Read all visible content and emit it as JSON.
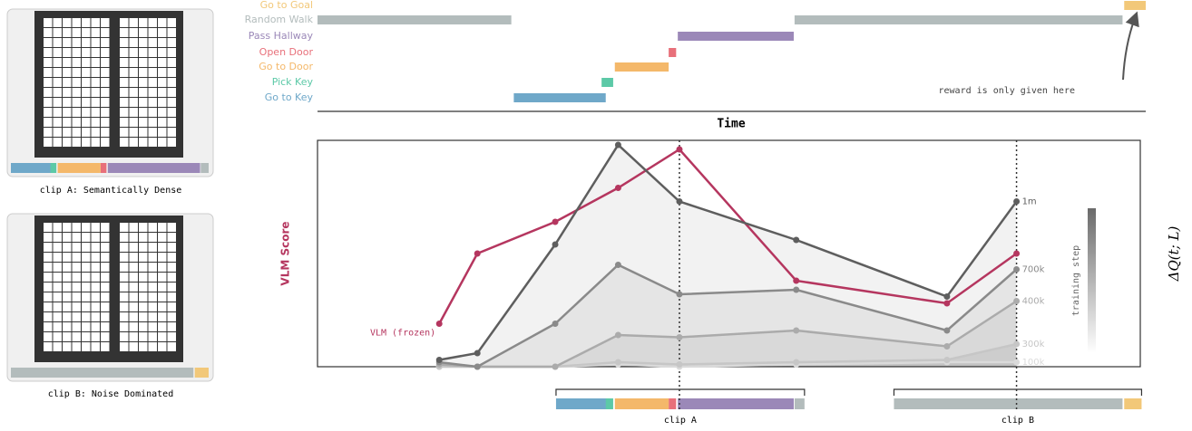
{
  "panels": [
    {
      "caption": "clip A: Semantically Dense"
    },
    {
      "caption": "clip B: Noise Dominated"
    }
  ],
  "chart_data": [
    {
      "type": "gantt",
      "xlabel": "Time",
      "xlim": [
        0,
        100
      ],
      "tasks": [
        {
          "name": "Go to Goal",
          "color": "#f2c879",
          "segments": [
            [
              97.4,
              100
            ]
          ]
        },
        {
          "name": "Random Walk",
          "color": "#b3bcbc",
          "segments": [
            [
              0,
              23.4
            ],
            [
              57.6,
              97.2
            ]
          ]
        },
        {
          "name": "Pass Hallway",
          "color": "#9b88b8",
          "segments": [
            [
              43.5,
              57.5
            ]
          ]
        },
        {
          "name": "Open Door",
          "color": "#e8707a",
          "segments": [
            [
              42.4,
              43.3
            ]
          ]
        },
        {
          "name": "Go to Door",
          "color": "#f4b86a",
          "segments": [
            [
              35.9,
              42.4
            ]
          ]
        },
        {
          "name": "Pick Key",
          "color": "#5cc9a7",
          "segments": [
            [
              34.3,
              35.7
            ]
          ]
        },
        {
          "name": "Go to Key",
          "color": "#6fa8c9",
          "segments": [
            [
              23.7,
              34.8
            ]
          ]
        }
      ],
      "annotation": "reward is only given here"
    },
    {
      "type": "line",
      "ylabel": "VLM Score",
      "y2label": "ΔQ(t; L)",
      "colorbar_label": "training step",
      "x": [
        14.7,
        19.3,
        28.7,
        36.3,
        43.7,
        57.8,
        76.0,
        84.4
      ],
      "xlim": [
        0,
        100
      ],
      "ylim": [
        0,
        1
      ],
      "series": [
        {
          "name": "1m",
          "color": "#5e5e5e",
          "values": [
            0.03,
            0.06,
            0.54,
            0.98,
            0.73,
            0.56,
            0.31,
            0.73
          ]
        },
        {
          "name": "700k",
          "color": "#8a8a8a",
          "values": [
            0.02,
            0.0,
            0.19,
            0.45,
            0.32,
            0.34,
            0.16,
            0.43
          ]
        },
        {
          "name": "400k",
          "color": "#ababab",
          "values": [
            0.01,
            0.0,
            0.0,
            0.14,
            0.13,
            0.16,
            0.09,
            0.29
          ]
        },
        {
          "name": "300k",
          "color": "#c6c6c6",
          "values": [
            0.0,
            0.0,
            0.0,
            0.02,
            0.01,
            0.02,
            0.03,
            0.1
          ]
        },
        {
          "name": "100k",
          "color": "#dadada",
          "values": [
            0.0,
            0.0,
            0.0,
            0.01,
            0.0,
            0.01,
            0.02,
            0.02
          ]
        },
        {
          "name": "VLM (frozen)",
          "color": "#b5365f",
          "values": [
            0.19,
            0.5,
            0.64,
            0.79,
            0.96,
            0.38,
            0.28,
            0.5
          ]
        }
      ],
      "markers": [
        43.7,
        84.4
      ],
      "clips": [
        {
          "label": "clip A",
          "xlim": [
            28.8,
            58.8
          ]
        },
        {
          "label": "clip B",
          "xlim": [
            69.6,
            99.5
          ]
        }
      ]
    }
  ]
}
